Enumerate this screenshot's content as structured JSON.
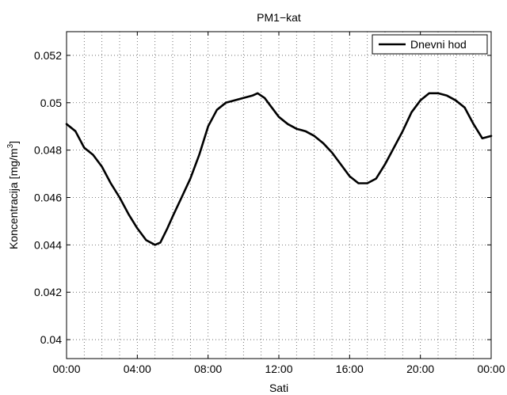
{
  "chart_data": {
    "type": "line",
    "title": "PM1−kat",
    "xlabel": "Sati",
    "ylabel": "Koncentracija [mg/m",
    "ylabel_sup": "3",
    "ylabel_close": "]",
    "xlim": [
      0,
      24
    ],
    "ylim": [
      0.0392,
      0.053
    ],
    "grid": true,
    "legend_position": "top-right",
    "x_ticks": [
      {
        "value": 0,
        "label": "00:00"
      },
      {
        "value": 4,
        "label": "04:00"
      },
      {
        "value": 8,
        "label": "08:00"
      },
      {
        "value": 12,
        "label": "12:00"
      },
      {
        "value": 16,
        "label": "16:00"
      },
      {
        "value": 20,
        "label": "20:00"
      },
      {
        "value": 24,
        "label": "00:00"
      }
    ],
    "y_ticks": [
      {
        "value": 0.04,
        "label": "0.04"
      },
      {
        "value": 0.042,
        "label": "0.042"
      },
      {
        "value": 0.044,
        "label": "0.044"
      },
      {
        "value": 0.046,
        "label": "0.046"
      },
      {
        "value": 0.048,
        "label": "0.048"
      },
      {
        "value": 0.05,
        "label": "0.05"
      },
      {
        "value": 0.052,
        "label": "0.052"
      }
    ],
    "series": [
      {
        "name": "Dnevni hod",
        "color": "#000000",
        "x": [
          0,
          0.5,
          1.0,
          1.5,
          2.0,
          2.5,
          3.0,
          3.5,
          4.0,
          4.5,
          5.0,
          5.3,
          5.7,
          6.0,
          6.5,
          7.0,
          7.5,
          8.0,
          8.5,
          9.0,
          9.5,
          10.0,
          10.5,
          10.8,
          11.2,
          11.5,
          12.0,
          12.5,
          13.0,
          13.5,
          14.0,
          14.5,
          15.0,
          15.5,
          16.0,
          16.5,
          17.0,
          17.5,
          18.0,
          18.5,
          19.0,
          19.5,
          20.0,
          20.5,
          21.0,
          21.5,
          22.0,
          22.5,
          23.0,
          23.5,
          24.0
        ],
        "values": [
          0.0491,
          0.0488,
          0.0481,
          0.0478,
          0.0473,
          0.0466,
          0.046,
          0.0453,
          0.0447,
          0.0442,
          0.044,
          0.0441,
          0.0447,
          0.0452,
          0.046,
          0.0468,
          0.0478,
          0.049,
          0.0497,
          0.05,
          0.0501,
          0.0502,
          0.0503,
          0.0504,
          0.0502,
          0.0499,
          0.0494,
          0.0491,
          0.0489,
          0.0488,
          0.0486,
          0.0483,
          0.0479,
          0.0474,
          0.0469,
          0.0466,
          0.0466,
          0.0468,
          0.0474,
          0.0481,
          0.0488,
          0.0496,
          0.0501,
          0.0504,
          0.0504,
          0.0503,
          0.0501,
          0.0498,
          0.0491,
          0.0485,
          0.0486
        ]
      }
    ]
  }
}
